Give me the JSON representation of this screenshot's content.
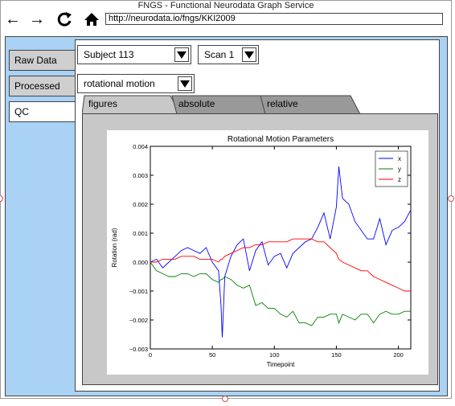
{
  "window": {
    "title": "FNGS - Functional Neurodata Graph Service",
    "url": "http://neurodata.io/fngs/KKI2009"
  },
  "nav": {
    "back_icon": "←",
    "forward_icon": "→",
    "reload_icon": "C",
    "home_icon": "⌂"
  },
  "sidebar": {
    "items": [
      {
        "label": "Raw Data"
      },
      {
        "label": "Processed"
      },
      {
        "label": "QC"
      }
    ],
    "active": "QC"
  },
  "selectors": {
    "subject": "Subject 113",
    "scan": "Scan 1",
    "metric": "rotational motion"
  },
  "tabs": [
    {
      "label": "figures"
    },
    {
      "label": "absolute"
    },
    {
      "label": "relative"
    }
  ],
  "active_tab": "figures",
  "chart_data": {
    "type": "line",
    "title": "Rotational Motion Parameters",
    "xlabel": "Timepoint",
    "ylabel": "Rotation (rad)",
    "xlim": [
      0,
      210
    ],
    "ylim": [
      -0.003,
      0.004
    ],
    "xticks": [
      0,
      50,
      100,
      150,
      200
    ],
    "yticks": [
      -0.003,
      -0.002,
      -0.001,
      0.0,
      0.001,
      0.002,
      0.003,
      0.004
    ],
    "ytick_labels": [
      "−0.003",
      "−0.002",
      "−0.001",
      "0.000",
      "0.001",
      "0.002",
      "0.003",
      "0.004"
    ],
    "legend_position": "top-right",
    "x": [
      0,
      5,
      10,
      15,
      20,
      25,
      30,
      35,
      40,
      45,
      50,
      55,
      57,
      58,
      60,
      65,
      70,
      75,
      80,
      85,
      90,
      95,
      100,
      105,
      110,
      115,
      120,
      125,
      130,
      135,
      140,
      145,
      150,
      152,
      155,
      160,
      165,
      170,
      175,
      180,
      185,
      190,
      195,
      200,
      205,
      210
    ],
    "series": [
      {
        "name": "x",
        "color": "#0000ff",
        "values": [
          0.0,
          0.0001,
          -0.0002,
          0.0,
          0.0002,
          0.0004,
          0.0005,
          0.0004,
          0.0003,
          0.0005,
          0.0,
          -0.0003,
          -0.0015,
          -0.0026,
          -0.0005,
          0.0002,
          0.0006,
          0.0008,
          -0.0003,
          0.0004,
          0.0007,
          -0.0001,
          0.0002,
          0.0003,
          -0.0002,
          0.0003,
          0.0005,
          0.0007,
          0.0008,
          0.0012,
          0.0017,
          0.0008,
          0.0019,
          0.0033,
          0.0022,
          0.002,
          0.0014,
          0.0011,
          0.0008,
          0.0008,
          0.0015,
          0.0006,
          0.0011,
          0.0012,
          0.0014,
          0.0018
        ]
      },
      {
        "name": "y",
        "color": "#008000",
        "values": [
          0.0,
          -0.0003,
          -0.0004,
          -0.0005,
          -0.0005,
          -0.0004,
          -0.0004,
          -0.0005,
          -0.0004,
          -0.0004,
          -0.0006,
          -0.0007,
          -0.0006,
          -0.0006,
          -0.0005,
          -0.0006,
          -0.0008,
          -0.0009,
          -0.0008,
          -0.0015,
          -0.0014,
          -0.0016,
          -0.0016,
          -0.0018,
          -0.0019,
          -0.0017,
          -0.0021,
          -0.0021,
          -0.0022,
          -0.0019,
          -0.0019,
          -0.0018,
          -0.0018,
          -0.0021,
          -0.0018,
          -0.0019,
          -0.002,
          -0.0018,
          -0.0018,
          -0.0021,
          -0.0018,
          -0.0017,
          -0.0018,
          -0.0018,
          -0.0017,
          -0.0017
        ]
      },
      {
        "name": "z",
        "color": "#ff0000",
        "values": [
          0.0,
          0.0,
          0.0001,
          0.0001,
          0.0001,
          0.0002,
          0.0002,
          0.0002,
          0.0001,
          0.0001,
          0.0001,
          0.0,
          0.0001,
          0.0001,
          0.0002,
          0.0003,
          0.0004,
          0.0005,
          0.0005,
          0.0006,
          0.0006,
          0.0007,
          0.0007,
          0.0007,
          0.0007,
          0.0008,
          0.0008,
          0.0008,
          0.0008,
          0.0007,
          0.0007,
          0.0005,
          0.0003,
          0.0001,
          0.0,
          -0.0001,
          -0.0002,
          -0.0003,
          -0.0003,
          -0.0005,
          -0.0006,
          -0.0007,
          -0.0008,
          -0.0009,
          -0.001,
          -0.001
        ]
      }
    ]
  }
}
